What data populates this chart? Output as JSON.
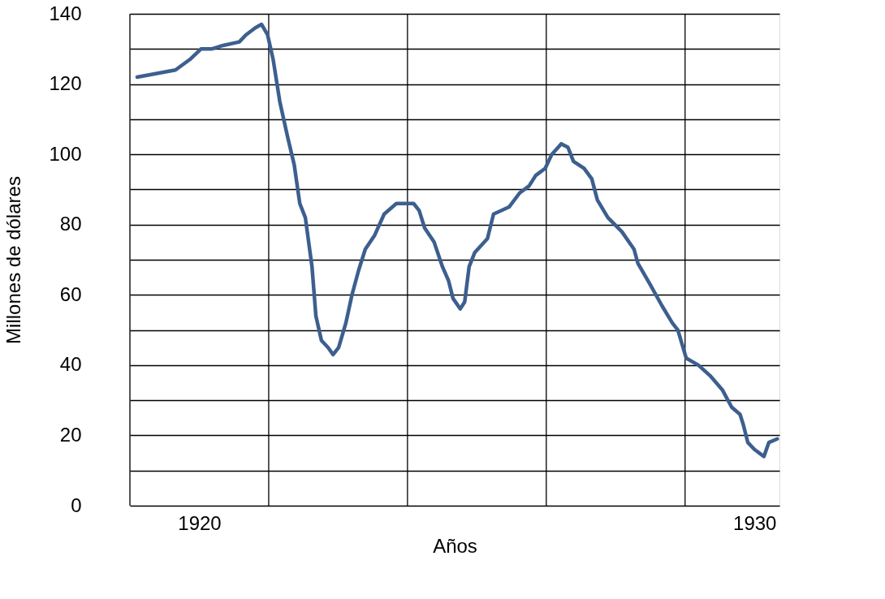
{
  "chart_data": {
    "type": "line",
    "xlabel": "Años",
    "ylabel": "Millones de dólares",
    "x": [
      1918.88,
      1919.57,
      1919.83,
      1920.03,
      1920.22,
      1920.43,
      1920.72,
      1920.84,
      1921.01,
      1921.12,
      1921.23,
      1921.33,
      1921.45,
      1921.59,
      1921.71,
      1921.81,
      1921.91,
      1922.03,
      1922.1,
      1922.2,
      1922.32,
      1922.41,
      1922.51,
      1922.64,
      1922.75,
      1922.87,
      1922.99,
      1923.16,
      1923.33,
      1923.55,
      1923.86,
      1923.96,
      1924.06,
      1924.23,
      1924.38,
      1924.49,
      1924.57,
      1924.7,
      1924.78,
      1924.86,
      1924.96,
      1925.19,
      1925.3,
      1925.58,
      1925.77,
      1925.94,
      1926.06,
      1926.23,
      1926.35,
      1926.52,
      1926.64,
      1926.74,
      1926.93,
      1927.07,
      1927.17,
      1927.36,
      1927.61,
      1927.83,
      1927.9,
      1928.12,
      1928.33,
      1928.52,
      1928.62,
      1928.77,
      1928.99,
      1929.2,
      1929.42,
      1929.59,
      1929.74,
      1929.8,
      1929.88,
      1930.0,
      1930.17,
      1930.26,
      1930.41
    ],
    "series": [
      {
        "color": "#3d5f8f",
        "values": [
          122,
          124,
          127,
          130,
          130,
          131,
          132,
          134,
          136,
          137,
          134,
          127,
          115,
          105,
          97,
          86,
          82,
          68,
          54,
          47,
          45,
          43,
          45,
          52,
          60,
          67,
          73,
          77,
          83,
          86,
          86,
          84,
          79,
          75,
          68,
          64,
          59,
          56,
          58,
          68,
          72,
          76,
          83,
          85,
          89,
          91,
          94,
          96,
          100,
          103,
          102,
          98,
          96,
          93,
          87,
          82,
          78,
          73,
          69,
          63,
          57,
          52,
          50,
          42,
          40,
          37,
          33,
          28,
          26,
          23,
          18,
          16,
          14,
          18,
          19
        ]
      }
    ],
    "xlim": [
      1918.75,
      1930.45
    ],
    "ylim": [
      0,
      140
    ],
    "xticks": [
      {
        "value": 1918.75,
        "label": null
      },
      {
        "value": 1920,
        "label": "1920"
      },
      {
        "value": 1921.25,
        "label": null
      },
      {
        "value": 1923.75,
        "label": null
      },
      {
        "value": 1926.25,
        "label": null
      },
      {
        "value": 1928.75,
        "label": null
      },
      {
        "value": 1930,
        "label": "1930"
      }
    ],
    "yticks": [
      0,
      {
        "value": 10,
        "label": null
      },
      20,
      {
        "value": 30,
        "label": null
      },
      40,
      {
        "value": 50,
        "label": null
      },
      60,
      {
        "value": 70,
        "label": null
      },
      80,
      {
        "value": 90,
        "label": null
      },
      100,
      {
        "value": 110,
        "label": null
      },
      120,
      {
        "value": 130,
        "label": null
      },
      140
    ],
    "grid": true,
    "marker": "none",
    "line_style": "solid"
  }
}
